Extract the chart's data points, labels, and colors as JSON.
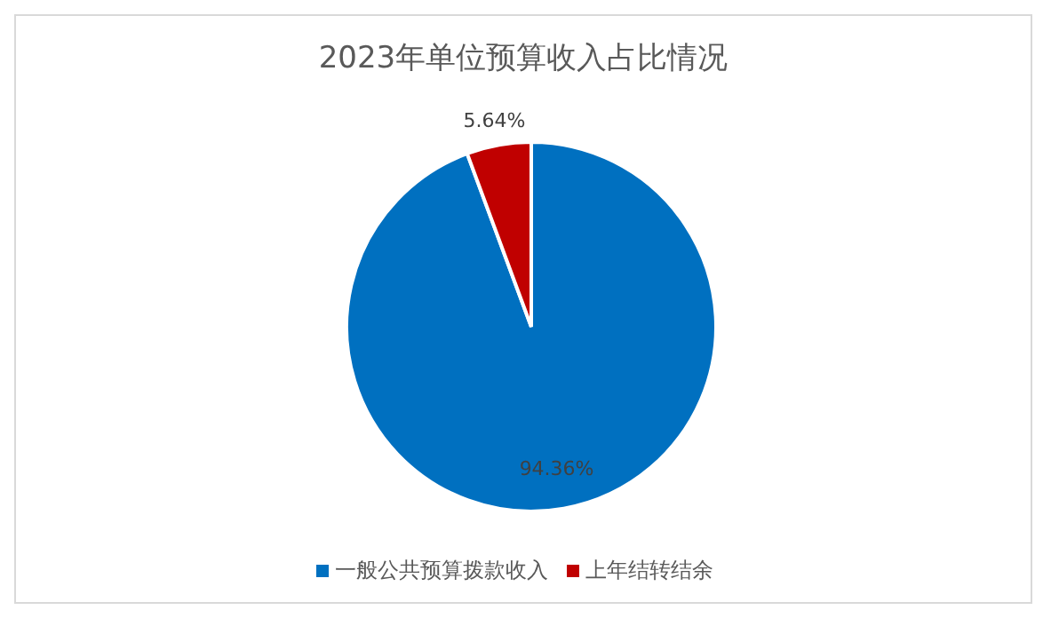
{
  "chart_data": {
    "type": "pie",
    "title": "2023年单位预算收入占比情况",
    "categories": [
      "一般公共预算拨款收入",
      "上年结转结余"
    ],
    "values": [
      94.36,
      5.64
    ],
    "colors": [
      "#0070c0",
      "#c00000"
    ],
    "value_labels": [
      "94.36%",
      "5.64%"
    ],
    "legend": "bottom"
  }
}
